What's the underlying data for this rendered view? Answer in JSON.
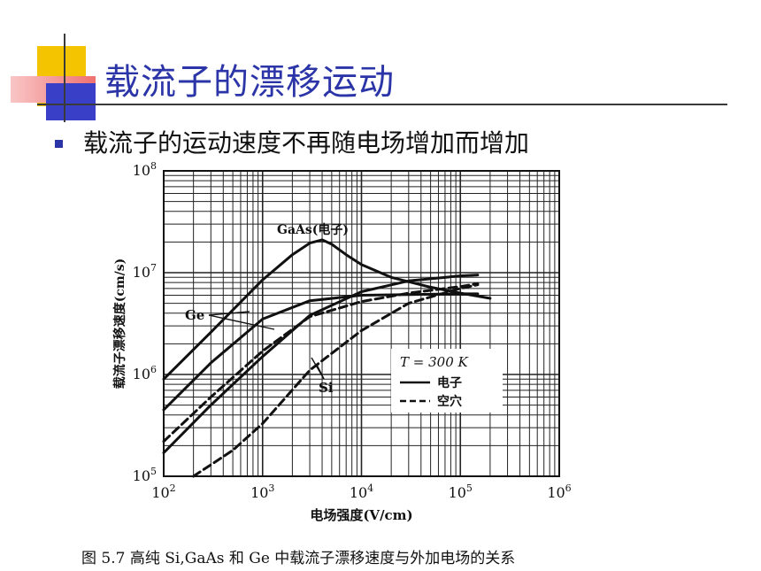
{
  "slide": {
    "title": "载流子的漂移运动",
    "bullet": "载流子的运动速度不再随电场增加而增加",
    "caption": "图 5.7   高纯 Si,GaAs 和 Ge 中载流子漂移速度与外加电场的关系",
    "colors": {
      "title": "#2b35a8",
      "deco_yellow": "#f5c400",
      "deco_red": "#f07070",
      "deco_blue": "#3a3fc8"
    }
  },
  "chart_data": {
    "type": "line",
    "title": "",
    "xlabel": "电场强度(V/cm)",
    "ylabel": "载流子漂移速度(cm/s)",
    "xscale": "log",
    "yscale": "log",
    "xlim": [
      100,
      1000000
    ],
    "ylim": [
      100000,
      100000000
    ],
    "grid": true,
    "xticks": [
      {
        "value": 100,
        "base": "10",
        "exp": "2"
      },
      {
        "value": 1000,
        "base": "10",
        "exp": "3"
      },
      {
        "value": 10000,
        "base": "10",
        "exp": "4"
      },
      {
        "value": 100000,
        "base": "10",
        "exp": "5"
      },
      {
        "value": 1000000,
        "base": "10",
        "exp": "6"
      }
    ],
    "yticks": [
      {
        "value": 100000,
        "base": "10",
        "exp": "5"
      },
      {
        "value": 1000000,
        "base": "10",
        "exp": "6"
      },
      {
        "value": 10000000,
        "base": "10",
        "exp": "7"
      },
      {
        "value": 100000000,
        "base": "10",
        "exp": "8"
      }
    ],
    "legend": {
      "placement": "lower-right",
      "title": "T = 300 K",
      "items": [
        {
          "label": "电子",
          "style": "solid"
        },
        {
          "label": "空穴",
          "style": "dashed"
        }
      ]
    },
    "annotations": [
      {
        "text": "GaAs(电子)"
      },
      {
        "text": "Ge"
      },
      {
        "text": "Si"
      }
    ],
    "series": [
      {
        "material": "GaAs",
        "carrier": "electron",
        "style": "solid",
        "x": [
          100,
          300,
          1000,
          2000,
          3000,
          4000,
          5000,
          7000,
          10000,
          20000,
          50000,
          100000,
          200000
        ],
        "y": [
          900000,
          2600000,
          8500000,
          15000000,
          19500000,
          21000000,
          19000000,
          15000000,
          12000000,
          9000000,
          7200000,
          6300000,
          5600000
        ]
      },
      {
        "material": "Ge",
        "carrier": "electron",
        "style": "solid",
        "x": [
          100,
          300,
          1000,
          3000,
          10000,
          30000,
          100000,
          150000
        ],
        "y": [
          450000,
          1300000,
          3500000,
          5300000,
          6000000,
          6100000,
          6200000,
          6200000
        ]
      },
      {
        "material": "Si",
        "carrier": "electron",
        "style": "solid",
        "x": [
          100,
          300,
          1000,
          3000,
          10000,
          30000,
          100000,
          150000
        ],
        "y": [
          170000,
          500000,
          1500000,
          3800000,
          6500000,
          8300000,
          9300000,
          9500000
        ]
      },
      {
        "material": "Ge",
        "carrier": "hole",
        "style": "dashed",
        "x": [
          100,
          300,
          1000,
          3000,
          10000,
          30000,
          100000,
          150000
        ],
        "y": [
          220000,
          600000,
          1700000,
          3700000,
          5200000,
          6300000,
          7300000,
          7800000
        ]
      },
      {
        "material": "Si",
        "carrier": "hole",
        "style": "dashed",
        "x": [
          200,
          500,
          1000,
          3000,
          10000,
          30000,
          100000,
          150000
        ],
        "y": [
          100000,
          180000,
          330000,
          1100000,
          2700000,
          5000000,
          7000000,
          7600000
        ]
      }
    ]
  }
}
